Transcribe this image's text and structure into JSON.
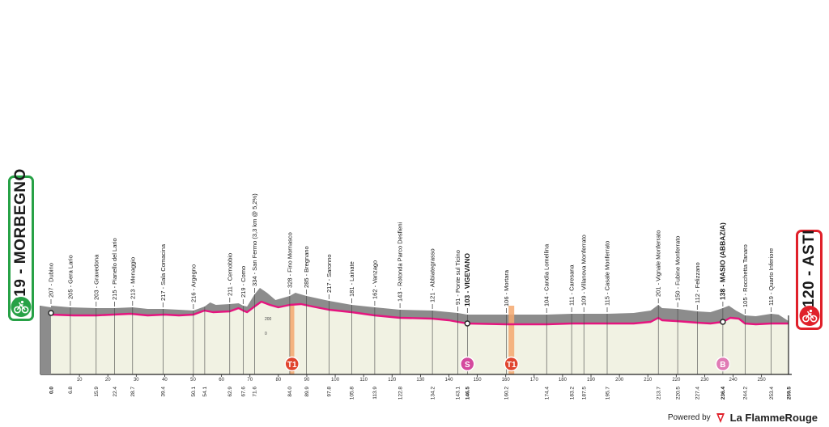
{
  "stage": {
    "start": {
      "label": "219 - MORBEGNO",
      "color": "#27a146",
      "icon": "cyclist-icon"
    },
    "finish": {
      "label": "120 - ASTI",
      "color": "#e0202a",
      "icon": "cyclist-icon"
    }
  },
  "colors": {
    "profile_fill": "#f1f2e3",
    "terrain": "#8c8c8c",
    "route_line": "#e5157f",
    "sprint_marker": "#e0452e",
    "intermediate_sprint": "#d44a9e",
    "bonus": "#e07bb5",
    "zone": "#f5a86e"
  },
  "chart_data": {
    "type": "area",
    "x_ticks": [
      "10",
      "20",
      "30",
      "40",
      "50",
      "60",
      "70",
      "80",
      "90",
      "100",
      "110",
      "120",
      "130",
      "140",
      "150",
      "160",
      "170",
      "180",
      "190",
      "200",
      "210",
      "220",
      "230",
      "240",
      "250"
    ],
    "elevation_scale": [
      "200",
      "0"
    ],
    "waypoints": [
      {
        "km": "0.0",
        "label": "207 - Dubino"
      },
      {
        "km": "6.8",
        "label": "205 - Gera Lario"
      },
      {
        "km": "15.9",
        "label": "203 - Gravedona"
      },
      {
        "km": "22.4",
        "label": "215 - Pianello del Lario"
      },
      {
        "km": "28.7",
        "label": "213 - Menaggio"
      },
      {
        "km": "39.4",
        "label": "217 - Sala Comacina"
      },
      {
        "km": "50.1",
        "label": "216 - Argegno"
      },
      {
        "km": "54.1",
        "label": ""
      },
      {
        "km": "62.9",
        "label": "211 - Cernobbio"
      },
      {
        "km": "67.6",
        "label": "219 - Como"
      },
      {
        "km": "71.6",
        "label": "334 - San Fermo (3,3 km @ 5,2%)"
      },
      {
        "km": "84.0",
        "label": "328 - Fino Mornasco"
      },
      {
        "km": "89.9",
        "label": "285 - Bregnano"
      },
      {
        "km": "97.8",
        "label": "217 - Saronno"
      },
      {
        "km": "105.8",
        "label": "181 - Lainate"
      },
      {
        "km": "113.9",
        "label": "162 - Vanzago"
      },
      {
        "km": "122.8",
        "label": "143 - Rotonda Parco Desfieni"
      },
      {
        "km": "134.2",
        "label": "121 - Abbiategrasso"
      },
      {
        "km": "143.1",
        "label": "91 - Ponte sul Ticino"
      },
      {
        "km": "146.5",
        "label": "103 - VIGEVANO",
        "bold": true
      },
      {
        "km": "160.2",
        "label": "106 - Mortara"
      },
      {
        "km": "174.4",
        "label": "104 - Candia Lomellina"
      },
      {
        "km": "183.2",
        "label": "111 - Caresana"
      },
      {
        "km": "187.5",
        "label": "109 - Villanova Monferrato"
      },
      {
        "km": "195.7",
        "label": "115 - Casale Monferrato"
      },
      {
        "km": "213.7",
        "label": "201 - Vignale Monferrato"
      },
      {
        "km": "220.5",
        "label": "150 - Fubine Monferrato"
      },
      {
        "km": "227.4",
        "label": "112 - Felizzano"
      },
      {
        "km": "236.4",
        "label": "138 - MASIO (ABBAZIA)",
        "bold": true
      },
      {
        "km": "244.2",
        "label": "105 - Rocchetta Tanaro"
      },
      {
        "km": "253.4",
        "label": "119 - Quarto Inferiore"
      },
      {
        "km": "259.5",
        "label": ""
      }
    ],
    "markers": [
      {
        "type": "sprint",
        "label": "T1"
      },
      {
        "type": "intermediate-sprint",
        "label": "S"
      },
      {
        "type": "sprint",
        "label": "T1"
      },
      {
        "type": "bonus",
        "label": "B"
      }
    ]
  },
  "footer": {
    "powered_by": "Powered by",
    "brand": "La FlammeRouge"
  }
}
